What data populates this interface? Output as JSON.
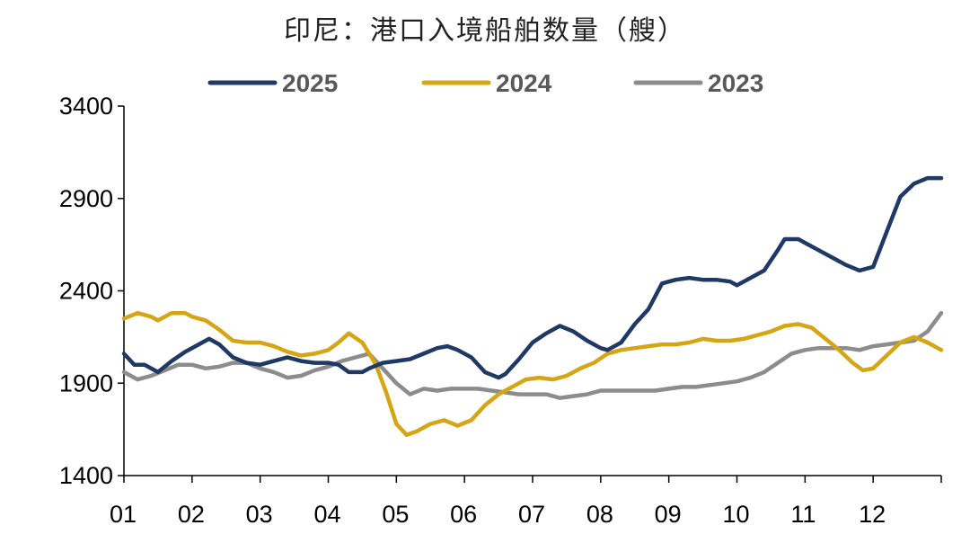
{
  "chart_data": {
    "type": "line",
    "title": "印尼：港口入境船舶数量（艘）",
    "xlabel": "",
    "ylabel": "",
    "x_ticks": [
      "01",
      "02",
      "03",
      "04",
      "05",
      "06",
      "07",
      "08",
      "09",
      "10",
      "11",
      "12"
    ],
    "x_range": [
      1,
      13
    ],
    "ylim": [
      1400,
      3400
    ],
    "y_ticks": [
      1400,
      1900,
      2400,
      2900,
      3400
    ],
    "legend_position": "top",
    "grid": false,
    "series": [
      {
        "name": "2025",
        "color": "#1f3864",
        "x": [
          1.0,
          1.15,
          1.3,
          1.5,
          1.7,
          1.9,
          2.05,
          2.25,
          2.4,
          2.6,
          2.8,
          3.0,
          3.2,
          3.4,
          3.6,
          3.8,
          4.0,
          4.15,
          4.3,
          4.5,
          4.6,
          4.8,
          5.0,
          5.2,
          5.4,
          5.6,
          5.75,
          5.9,
          6.1,
          6.3,
          6.5,
          6.6,
          6.8,
          7.0,
          7.2,
          7.4,
          7.6,
          7.8,
          8.0,
          8.1,
          8.3,
          8.5,
          8.7,
          8.9,
          9.1,
          9.3,
          9.5,
          9.7,
          9.9,
          10.0,
          10.2,
          10.4,
          10.6,
          10.7,
          10.9,
          11.0,
          11.2,
          11.4,
          11.6,
          11.8,
          12.0,
          12.2,
          12.4,
          12.6,
          12.8,
          13.0
        ],
        "y": [
          2060,
          2000,
          2000,
          1960,
          2020,
          2070,
          2100,
          2140,
          2110,
          2040,
          2010,
          2000,
          2020,
          2040,
          2020,
          2010,
          2010,
          2000,
          1960,
          1960,
          1980,
          2010,
          2020,
          2030,
          2060,
          2090,
          2100,
          2080,
          2040,
          1960,
          1930,
          1950,
          2030,
          2120,
          2170,
          2210,
          2180,
          2130,
          2090,
          2080,
          2120,
          2220,
          2300,
          2440,
          2460,
          2470,
          2460,
          2460,
          2450,
          2430,
          2470,
          2510,
          2620,
          2680,
          2680,
          2660,
          2620,
          2580,
          2540,
          2510,
          2530,
          2720,
          2910,
          2980,
          3010,
          3010
        ]
      },
      {
        "name": "2024",
        "color": "#d4a616",
        "x": [
          1.0,
          1.2,
          1.4,
          1.5,
          1.7,
          1.9,
          2.0,
          2.2,
          2.4,
          2.6,
          2.8,
          3.0,
          3.2,
          3.4,
          3.6,
          3.8,
          4.0,
          4.15,
          4.3,
          4.5,
          4.7,
          4.85,
          5.0,
          5.15,
          5.3,
          5.5,
          5.7,
          5.9,
          6.1,
          6.3,
          6.5,
          6.7,
          6.9,
          7.1,
          7.3,
          7.5,
          7.7,
          7.9,
          8.1,
          8.3,
          8.5,
          8.7,
          8.9,
          9.1,
          9.3,
          9.5,
          9.7,
          9.9,
          10.1,
          10.3,
          10.5,
          10.7,
          10.9,
          11.1,
          11.3,
          11.5,
          11.7,
          11.85,
          12.0,
          12.2,
          12.4,
          12.6,
          12.8,
          13.0
        ],
        "y": [
          2250,
          2280,
          2260,
          2240,
          2280,
          2280,
          2260,
          2240,
          2190,
          2130,
          2120,
          2120,
          2100,
          2070,
          2050,
          2060,
          2080,
          2120,
          2170,
          2120,
          2000,
          1850,
          1680,
          1620,
          1640,
          1680,
          1700,
          1670,
          1700,
          1780,
          1840,
          1880,
          1920,
          1930,
          1920,
          1940,
          1980,
          2010,
          2060,
          2080,
          2090,
          2100,
          2110,
          2110,
          2120,
          2140,
          2130,
          2130,
          2140,
          2160,
          2180,
          2210,
          2220,
          2200,
          2140,
          2080,
          2010,
          1970,
          1980,
          2050,
          2120,
          2150,
          2120,
          2080
        ]
      },
      {
        "name": "2023",
        "color": "#8c8c8c",
        "x": [
          1.0,
          1.2,
          1.4,
          1.6,
          1.8,
          2.0,
          2.2,
          2.4,
          2.6,
          2.8,
          3.0,
          3.2,
          3.4,
          3.6,
          3.8,
          4.0,
          4.2,
          4.4,
          4.6,
          4.8,
          5.0,
          5.2,
          5.4,
          5.6,
          5.8,
          6.0,
          6.2,
          6.4,
          6.6,
          6.8,
          7.0,
          7.2,
          7.4,
          7.6,
          7.8,
          8.0,
          8.2,
          8.4,
          8.6,
          8.8,
          9.0,
          9.2,
          9.4,
          9.6,
          9.8,
          10.0,
          10.2,
          10.4,
          10.6,
          10.8,
          11.0,
          11.2,
          11.4,
          11.6,
          11.8,
          12.0,
          12.2,
          12.4,
          12.6,
          12.8,
          13.0
        ],
        "y": [
          1960,
          1920,
          1940,
          1970,
          2000,
          2000,
          1980,
          1990,
          2010,
          2010,
          1980,
          1960,
          1930,
          1940,
          1970,
          1990,
          2020,
          2040,
          2060,
          1980,
          1900,
          1840,
          1870,
          1860,
          1870,
          1870,
          1870,
          1860,
          1850,
          1840,
          1840,
          1840,
          1820,
          1830,
          1840,
          1860,
          1860,
          1860,
          1860,
          1860,
          1870,
          1880,
          1880,
          1890,
          1900,
          1910,
          1930,
          1960,
          2010,
          2060,
          2080,
          2090,
          2090,
          2090,
          2080,
          2100,
          2110,
          2120,
          2130,
          2180,
          2280
        ]
      }
    ]
  }
}
